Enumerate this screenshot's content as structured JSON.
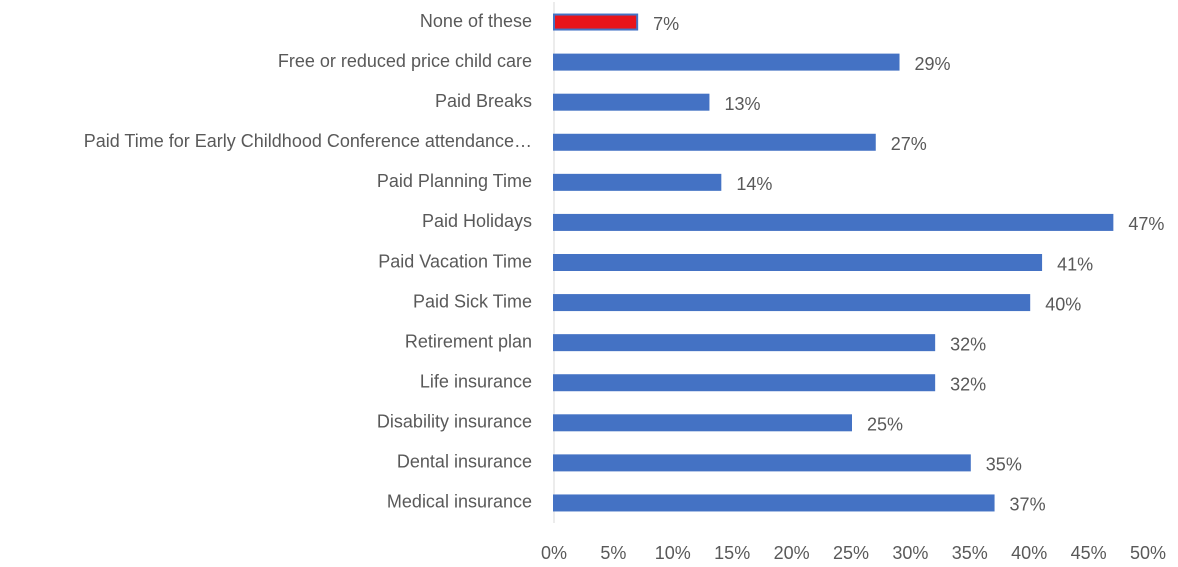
{
  "chart_data": {
    "type": "hbar",
    "categories": [
      "None of these",
      "Free or reduced price child care",
      "Paid Breaks",
      "Paid Time for Early Childhood Conference attendance…",
      "Paid Planning Time",
      "Paid Holidays",
      "Paid Vacation Time",
      "Paid Sick Time",
      "Retirement plan",
      "Life insurance",
      "Disability insurance",
      "Dental insurance",
      "Medical insurance"
    ],
    "values": [
      7,
      29,
      13,
      27,
      14,
      47,
      41,
      40,
      32,
      32,
      25,
      35,
      37
    ],
    "value_labels": [
      "7%",
      "29%",
      "13%",
      "27%",
      "14%",
      "47%",
      "41%",
      "40%",
      "32%",
      "32%",
      "25%",
      "35%",
      "37%"
    ],
    "bar_colors": [
      "#e8141b",
      "#4472c4",
      "#4472c4",
      "#4472c4",
      "#4472c4",
      "#4472c4",
      "#4472c4",
      "#4472c4",
      "#4472c4",
      "#4472c4",
      "#4472c4",
      "#4472c4",
      "#4472c4"
    ],
    "bar_outline": "#4472c4",
    "xlim": [
      0,
      50
    ],
    "xticks": [
      {
        "value": 0,
        "label": "0%"
      },
      {
        "value": 5,
        "label": "5%"
      },
      {
        "value": 10,
        "label": "10%"
      },
      {
        "value": 15,
        "label": "15%"
      },
      {
        "value": 20,
        "label": "20%"
      },
      {
        "value": 25,
        "label": "25%"
      },
      {
        "value": 30,
        "label": "30%"
      },
      {
        "value": 35,
        "label": "35%"
      },
      {
        "value": 40,
        "label": "40%"
      },
      {
        "value": 45,
        "label": "45%"
      },
      {
        "value": 50,
        "label": "50%"
      }
    ],
    "grid": false
  }
}
